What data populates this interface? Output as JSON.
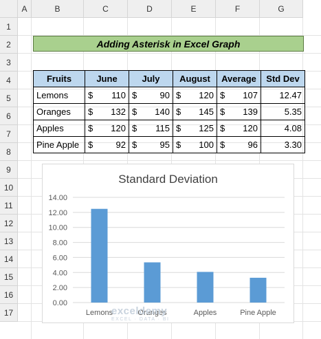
{
  "columns": [
    "A",
    "B",
    "C",
    "D",
    "E",
    "F",
    "G"
  ],
  "rows": [
    "1",
    "2",
    "3",
    "4",
    "5",
    "6",
    "7",
    "8",
    "9",
    "10",
    "11",
    "12",
    "13",
    "14",
    "15",
    "16",
    "17"
  ],
  "title": "Adding Asterisk in Excel Graph",
  "table": {
    "headers": [
      "Fruits",
      "June",
      "July",
      "August",
      "Average",
      "Std Dev"
    ],
    "currency": "$",
    "rows": [
      {
        "fruit": "Lemons",
        "june": "110",
        "july": "90",
        "august": "120",
        "average": "107",
        "std": "12.47"
      },
      {
        "fruit": "Oranges",
        "june": "132",
        "july": "140",
        "august": "145",
        "average": "139",
        "std": "5.35"
      },
      {
        "fruit": "Apples",
        "june": "120",
        "july": "115",
        "august": "125",
        "average": "120",
        "std": "4.08"
      },
      {
        "fruit": "Pine Apple",
        "june": "92",
        "july": "95",
        "august": "100",
        "average": "96",
        "std": "3.30"
      }
    ]
  },
  "chart_data": {
    "type": "bar",
    "title": "Standard Deviation",
    "categories": [
      "Lemons",
      "Oranges",
      "Apples",
      "Pine Apple"
    ],
    "values": [
      12.47,
      5.35,
      4.08,
      3.3
    ],
    "ylim": [
      0,
      14
    ],
    "yticks": [
      "0.00",
      "2.00",
      "4.00",
      "6.00",
      "8.00",
      "10.00",
      "12.00",
      "14.00"
    ],
    "grid": true,
    "bar_color": "#5b9bd5"
  },
  "watermark": {
    "brand": "exceldemy",
    "tagline": "EXCEL · DATA · BI"
  }
}
